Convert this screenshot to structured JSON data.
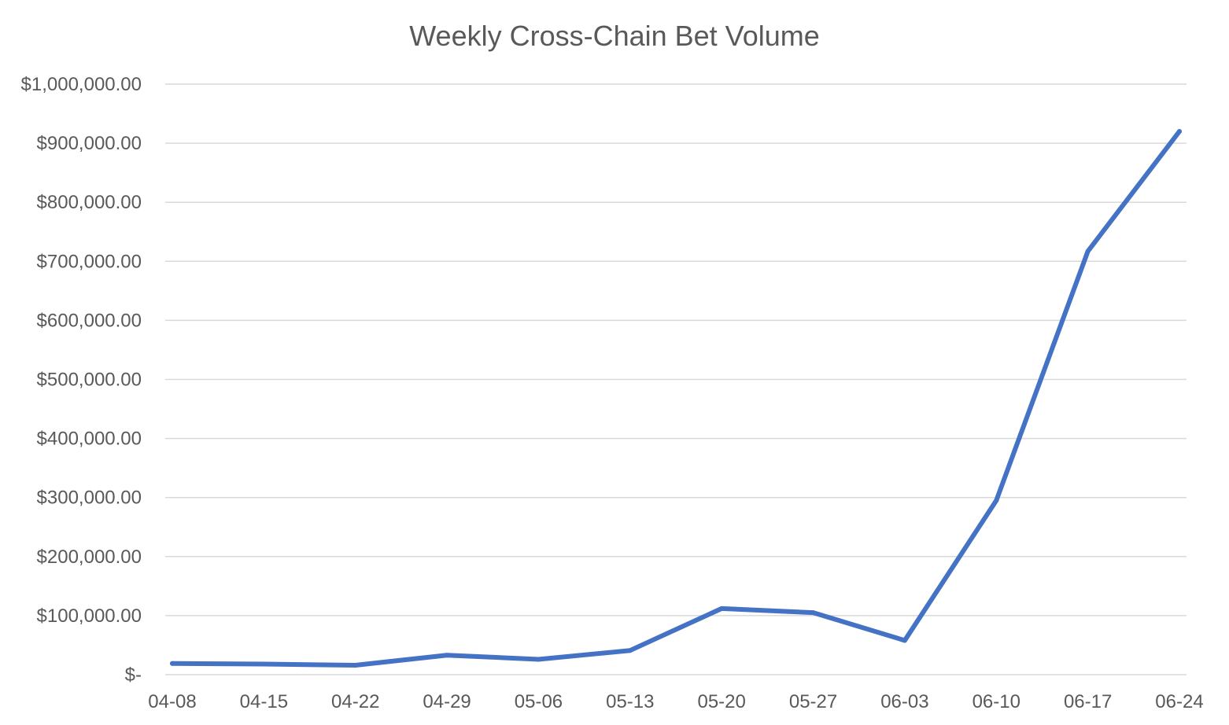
{
  "chart_data": {
    "type": "line",
    "title": "Weekly Cross-Chain Bet Volume",
    "xlabel": "",
    "ylabel": "",
    "categories": [
      "04-08",
      "04-15",
      "04-22",
      "04-29",
      "05-06",
      "05-13",
      "05-20",
      "05-27",
      "06-03",
      "06-10",
      "06-17",
      "06-24"
    ],
    "series": [
      {
        "values": [
          19000,
          18000,
          16000,
          33000,
          26000,
          41000,
          112000,
          105000,
          58000,
          295000,
          717000,
          920000
        ],
        "color": "#4472c4"
      }
    ],
    "ylim": [
      0,
      1000000
    ],
    "ytick_values": [
      0,
      100000,
      200000,
      300000,
      400000,
      500000,
      600000,
      700000,
      800000,
      900000,
      1000000
    ],
    "ytick_labels": [
      "$-",
      "$100,000.00",
      "$200,000.00",
      "$300,000.00",
      "$400,000.00",
      "$500,000.00",
      "$600,000.00",
      "$700,000.00",
      "$800,000.00",
      "$900,000.00",
      "$1,000,000.00"
    ],
    "grid": true,
    "legend": "none"
  }
}
